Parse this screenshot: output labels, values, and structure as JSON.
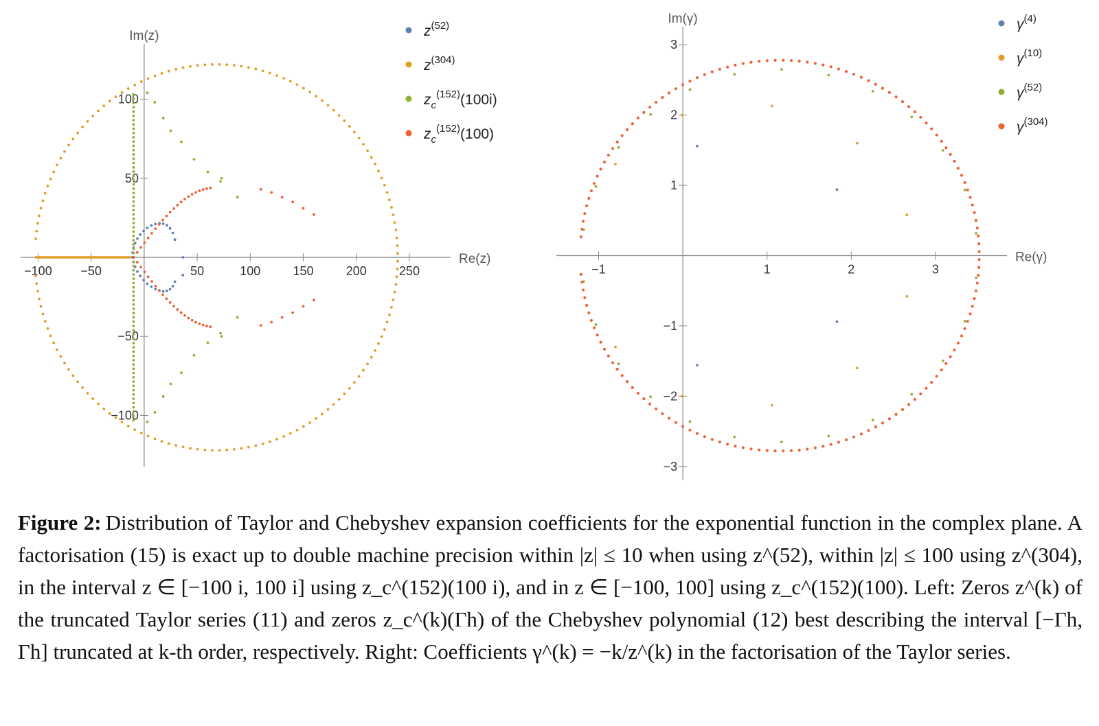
{
  "colors": {
    "blue": "#5e81b5",
    "orange": "#e19c24",
    "green": "#8fb032",
    "red": "#eb6235",
    "axis": "#888888"
  },
  "chart_data": [
    {
      "type": "scatter",
      "xlabel": "Re(z)",
      "ylabel": "Im(z)",
      "xlim": [
        -110,
        285
      ],
      "ylim": [
        -128,
        128
      ],
      "xticks": [
        -100,
        -50,
        50,
        100,
        150,
        200,
        250
      ],
      "yticks": [
        -100,
        -50,
        50,
        100
      ],
      "xtick_labels": [
        "−100",
        "−50",
        "50",
        "100",
        "150",
        "200",
        "250"
      ],
      "ytick_labels": [
        "−100",
        "−50",
        "50",
        "100"
      ],
      "legend_position": "top-right",
      "series": [
        {
          "label_base": "z",
          "label_sub": "",
          "label_sup": "(52)",
          "label_arg": "",
          "color": "blue",
          "points": [
            [
              -11.2,
              0.0
            ],
            [
              -10.9,
              3.0
            ],
            [
              -10.0,
              6.0
            ],
            [
              -8.5,
              9.0
            ],
            [
              -6.4,
              11.8
            ],
            [
              -3.7,
              14.4
            ],
            [
              -0.5,
              16.7
            ],
            [
              3.0,
              18.6
            ],
            [
              6.8,
              20.1
            ],
            [
              10.6,
              21.1
            ],
            [
              14.4,
              21.5
            ],
            [
              18.0,
              21.2
            ],
            [
              21.4,
              20.2
            ],
            [
              24.4,
              18.3
            ],
            [
              27.0,
              15.4
            ],
            [
              29.0,
              11.2
            ],
            [
              36.5,
              -0.0
            ],
            [
              36.5,
              -11.2
            ],
            [
              29.0,
              -15.4
            ],
            [
              27.0,
              -18.3
            ],
            [
              24.4,
              -20.2
            ],
            [
              21.4,
              -21.2
            ],
            [
              18.0,
              -21.5
            ],
            [
              14.4,
              -21.1
            ],
            [
              10.6,
              -20.1
            ],
            [
              6.8,
              -18.6
            ],
            [
              3.0,
              -16.7
            ],
            [
              -0.5,
              -14.4
            ],
            [
              -3.7,
              -11.8
            ],
            [
              -6.4,
              -9.0
            ],
            [
              -8.5,
              -6.0
            ],
            [
              -10.0,
              -3.0
            ],
            [
              -10.9,
              0.0
            ]
          ]
        },
        {
          "label_base": "z",
          "label_sub": "",
          "label_sup": "(304)",
          "label_arg": "",
          "color": "orange",
          "ellipse": {
            "cx": 68.0,
            "cy": 0.0,
            "rx": 171.0,
            "ry": 122.0,
            "max_angle_deg": 174.5,
            "count": 152
          },
          "tail": {
            "start_x": -102.0,
            "end_x": -14.0
          }
        },
        {
          "label_base": "z",
          "label_sub": "c",
          "label_sup": "(152)",
          "label_arg": "(100i)",
          "color": "green",
          "points_note": "generated"
        },
        {
          "label_base": "z",
          "label_sub": "c",
          "label_sup": "(152)",
          "label_arg": "(100)",
          "color": "red",
          "points_note": "generated"
        }
      ]
    },
    {
      "type": "scatter",
      "xlabel": "Re(γ)",
      "ylabel": "Im(γ)",
      "xlim": [
        -1.42,
        3.8
      ],
      "ylim": [
        -3.1,
        3.1
      ],
      "xticks": [
        -1,
        1,
        2,
        3
      ],
      "yticks": [
        -3,
        -2,
        -1,
        1,
        2,
        3
      ],
      "xtick_labels": [
        "−1",
        "1",
        "2",
        "3"
      ],
      "ytick_labels": [
        "−3",
        "−2",
        "−1",
        "1",
        "2",
        "3"
      ],
      "legend_position": "top-right",
      "series": [
        {
          "label_base": "γ",
          "label_sub": "",
          "label_sup": "(4)",
          "label_arg": "",
          "color": "blue",
          "points": [
            [
              0.17,
              1.56
            ],
            [
              1.83,
              0.94
            ],
            [
              1.83,
              -0.94
            ],
            [
              0.17,
              -1.56
            ]
          ]
        },
        {
          "label_base": "γ",
          "label_sub": "",
          "label_sup": "(10)",
          "label_arg": "",
          "color": "orange",
          "points": [
            [
              -0.8,
              1.3
            ],
            [
              -0.01,
              2.0
            ],
            [
              1.06,
              2.13
            ],
            [
              2.07,
              1.6
            ],
            [
              2.66,
              0.58
            ],
            [
              2.66,
              -0.58
            ],
            [
              2.07,
              -1.6
            ],
            [
              1.06,
              -2.13
            ],
            [
              -0.01,
              -2.0
            ],
            [
              -0.8,
              -1.3
            ]
          ]
        },
        {
          "label_base": "γ",
          "label_sub": "",
          "label_sup": "(52)",
          "label_arg": "",
          "color": "green",
          "ellipse": {
            "cx": 1.15,
            "cy": 0.0,
            "rx": 2.35,
            "ry": 2.65,
            "max_angle_deg": 172.0,
            "count": 26
          }
        },
        {
          "label_base": "γ",
          "label_sub": "",
          "label_sup": "(304)",
          "label_arg": "",
          "color": "red",
          "ellipse": {
            "cx": 1.15,
            "cy": 0.0,
            "rx": 2.37,
            "ry": 2.78,
            "max_angle_deg": 174.5,
            "count": 152
          }
        }
      ]
    }
  ],
  "caption": {
    "figure_label": "Figure 2:",
    "text": "Distribution of Taylor and Chebyshev expansion coefficients for the exponential function in the complex plane. A factorisation (15) is exact up to double machine precision within |z| ≤ 10 when using z^(52), within |z| ≤ 100 using z^(304), in the interval z ∈ [−100 i, 100 i] using z_c^(152)(100 i), and in z ∈ [−100, 100] using z_c^(152)(100). Left: Zeros z^(k) of the truncated Taylor series (11) and zeros z_c^(k)(Γh) of the Chebyshev polynomial (12) best describing the interval [−Γh, Γh] truncated at k-th order, respectively. Right: Coefficients γ^(k) = −k/z^(k) in the factorisation of the Taylor series."
  }
}
